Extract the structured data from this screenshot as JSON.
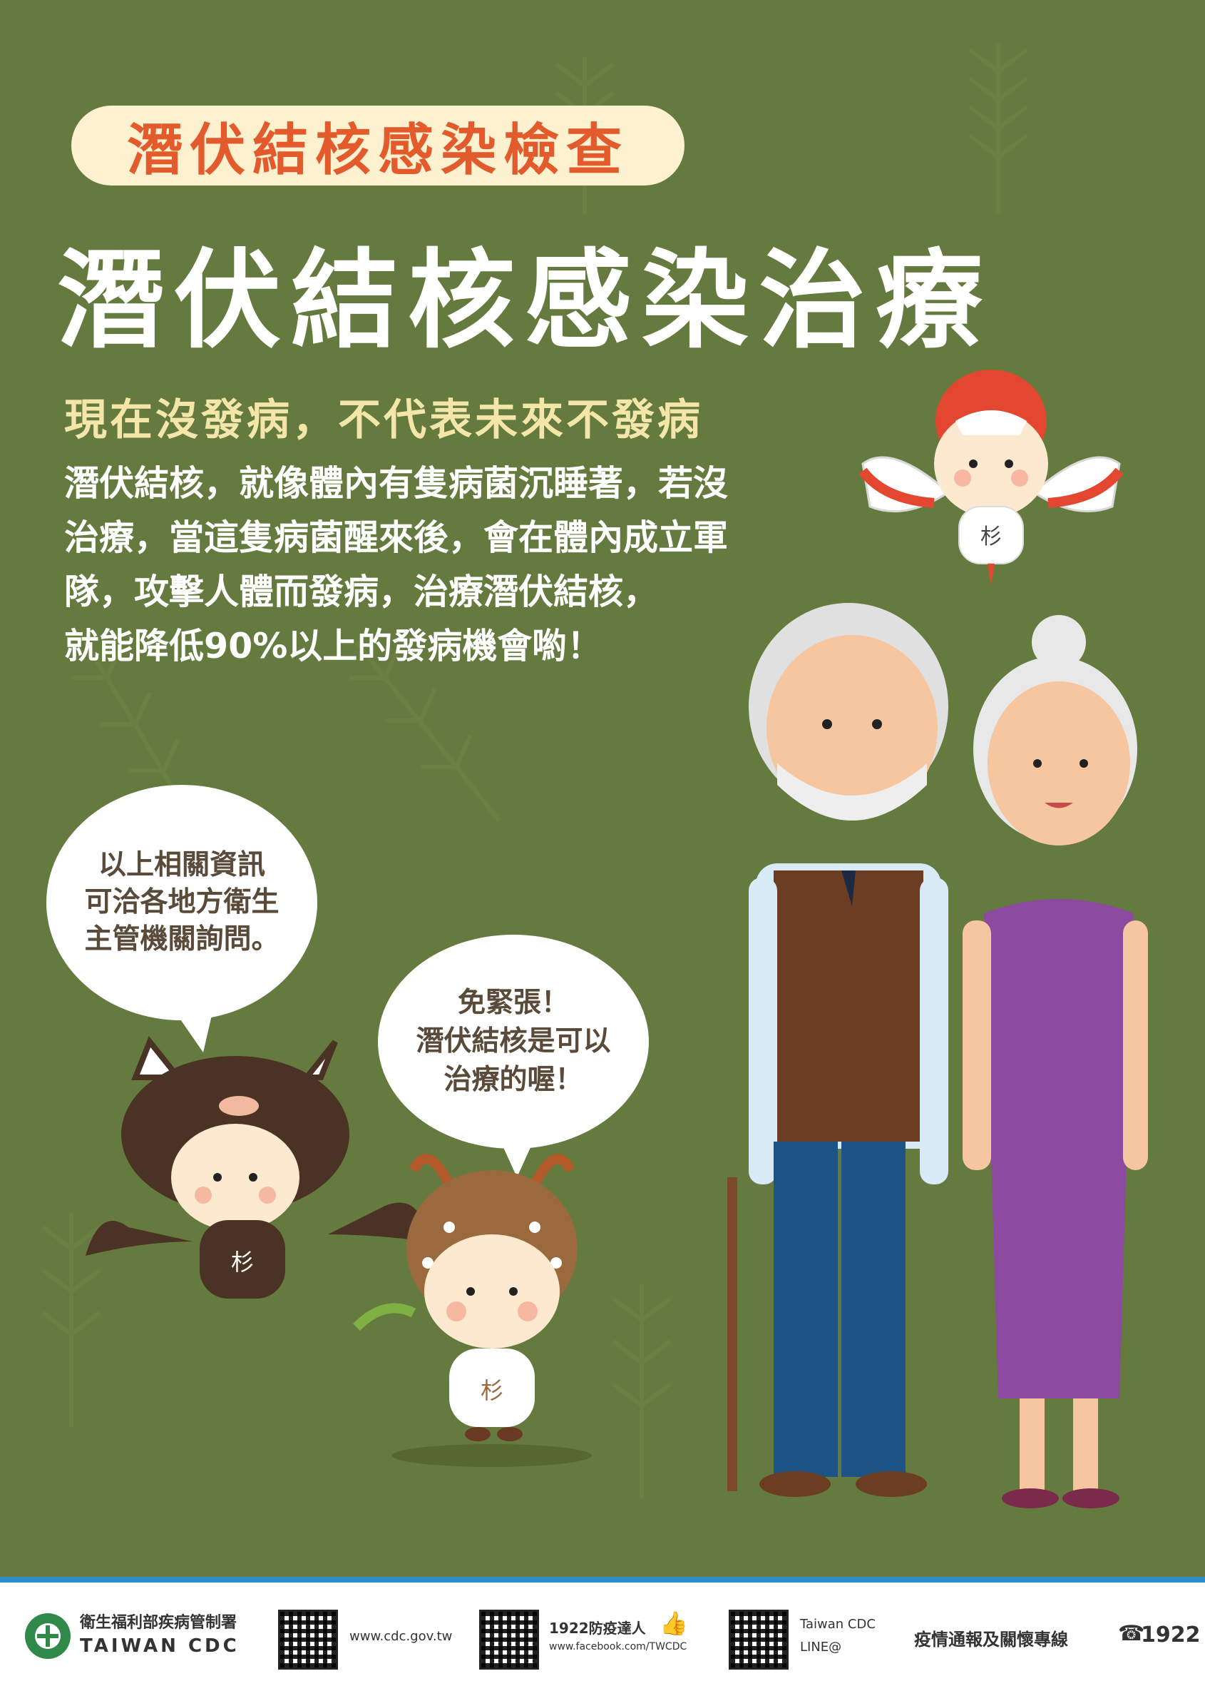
{
  "subtitle": "潛伏結核感染檢查",
  "title": "潛伏結核感染治療",
  "headline": "現在沒發病，不代表未來不發病",
  "body_lines": [
    "潛伏結核，就像體內有隻病菌沉睡著，若沒",
    "治療，當這隻病菌醒來後，會在體內成立軍",
    "隊，攻擊人體而發病，治療潛伏結核，",
    "就能降低90%以上的發病機會喲！"
  ],
  "bubble_left_lines": [
    "以上相關資訊",
    "可洽各地方衛生",
    "主管機關詢問。"
  ],
  "bubble_mid_lines": [
    "免緊張！",
    "潛伏結核是可以",
    "治療的喔！"
  ],
  "mascot_badge": "杉",
  "footer": {
    "org_name": "衛生福利部疾病管制署",
    "org_en": "TAIWAN CDC",
    "website": "www.cdc.gov.tw",
    "fb_label": "1922防疫達人",
    "fb_url": "www.facebook.com/TWCDC",
    "line_label": "Taiwan CDC",
    "line_sub": "LINE@",
    "hotline_label": "疫情通報及關懷專線",
    "hotline_number": "1922"
  },
  "colors": {
    "background": "#647a3e",
    "pill": "#fdf1cf",
    "pill_text": "#e35a2c",
    "headline": "#f3e6a8",
    "footer_line": "#2a8ec8"
  }
}
